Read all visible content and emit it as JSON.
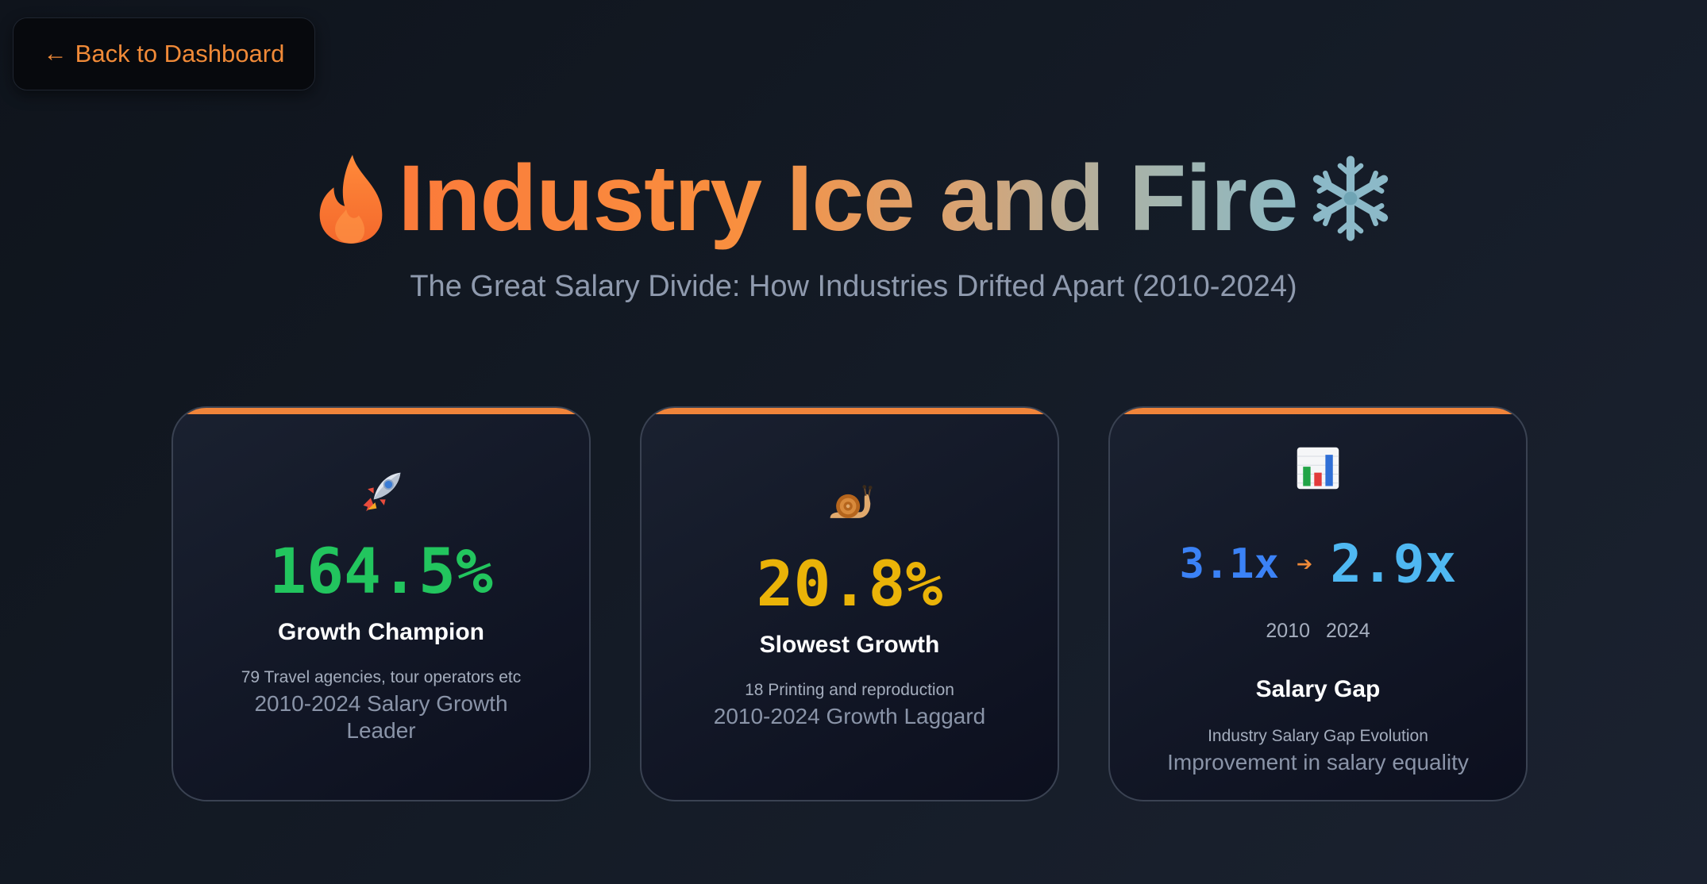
{
  "nav": {
    "back_label": "Back to Dashboard",
    "back_icon": "arrow-left-icon"
  },
  "hero": {
    "title": "Industry Ice and Fire",
    "left_icon": "fire-icon",
    "right_icon": "snowflake-icon",
    "subtitle": "The Great Salary Divide: How Industries Drifted Apart (2010-2024)"
  },
  "cards": [
    {
      "icon": "rocket-icon",
      "value": "164.5%",
      "value_color": "#22c55e",
      "title": "Growth Champion",
      "detail": "79 Travel agencies, tour operators etc",
      "caption": "2010-2024 Salary Growth Leader"
    },
    {
      "icon": "snail-icon",
      "value": "20.8%",
      "value_color": "#eab308",
      "title": "Slowest Growth",
      "detail": "18 Printing and reproduction",
      "caption": "2010-2024 Growth Laggard"
    },
    {
      "icon": "bar-chart-icon",
      "ratio_from": "3.1x",
      "ratio_to": "2.9x",
      "year_from": "2010",
      "year_to": "2024",
      "title": "Salary Gap",
      "detail": "Industry Salary Gap Evolution",
      "caption": "Improvement in salary equality"
    }
  ],
  "colors": {
    "accent": "#f0843a",
    "card_border": "#3a4252",
    "background": "#141b26"
  }
}
